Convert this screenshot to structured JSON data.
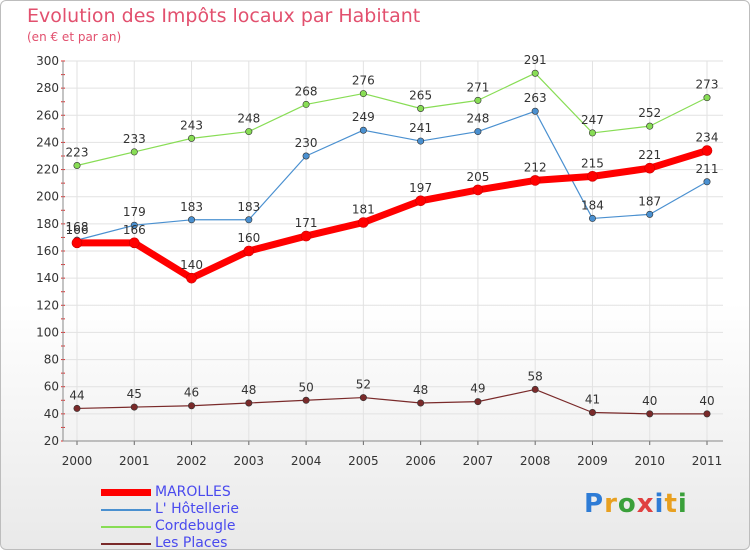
{
  "title": "Evolution des Impôts locaux par Habitant",
  "subtitle": "(en € et par an)",
  "logo": {
    "text": "Proxiti",
    "letters": [
      "P",
      "r",
      "o",
      "x",
      "i",
      "t",
      "i"
    ],
    "colors": [
      "#2e7cd6",
      "#e8a020",
      "#3aa03a",
      "#e04040",
      "#2e7cd6",
      "#e8a020",
      "#3aa03a"
    ]
  },
  "chart_data": {
    "type": "line",
    "title": "Evolution des Impôts locaux par Habitant",
    "subtitle": "(en € et par an)",
    "xlabel": "",
    "ylabel": "",
    "x": [
      "2000",
      "2001",
      "2002",
      "2003",
      "2004",
      "2005",
      "2006",
      "2007",
      "2008",
      "2009",
      "2010",
      "2011"
    ],
    "ylim": [
      20,
      300
    ],
    "yticks": [
      20,
      40,
      60,
      80,
      100,
      120,
      140,
      160,
      180,
      200,
      220,
      240,
      260,
      280,
      300
    ],
    "grid": true,
    "legend_position": "bottom-left",
    "series": [
      {
        "name": "MAROLLES",
        "color": "#ff0000",
        "width": 7,
        "marker": 5,
        "values": [
          166,
          166,
          140,
          160,
          171,
          181,
          197,
          205,
          212,
          215,
          221,
          234
        ],
        "labels": [
          "166",
          "166",
          "140",
          "160",
          "171",
          "181",
          "197",
          "205",
          "212",
          "215",
          "221",
          "234"
        ]
      },
      {
        "name": "L' Hôtellerie",
        "color": "#4a90d0",
        "width": 1.2,
        "marker": 3.2,
        "values": [
          168,
          179,
          183,
          183,
          230,
          249,
          241,
          248,
          263,
          184,
          187,
          211
        ],
        "labels": [
          "168",
          "179",
          "183",
          "183",
          "230",
          "249",
          "241",
          "248",
          "263",
          "184",
          "187",
          "211"
        ]
      },
      {
        "name": "Cordebugle",
        "color": "#88dd55",
        "width": 1.2,
        "marker": 3.2,
        "values": [
          223,
          233,
          243,
          248,
          268,
          276,
          265,
          271,
          291,
          247,
          252,
          273
        ],
        "labels": [
          "223",
          "233",
          "243",
          "248",
          "268",
          "276",
          "265",
          "271",
          "291",
          "247",
          "252",
          "273"
        ]
      },
      {
        "name": "Les Places",
        "color": "#7a2a2a",
        "width": 1.2,
        "marker": 3.2,
        "values": [
          44,
          45,
          46,
          48,
          50,
          52,
          48,
          49,
          58,
          41,
          40,
          40
        ],
        "labels": [
          "44",
          "45",
          "46",
          "48",
          "50",
          "52",
          "48",
          "49",
          "58",
          "41",
          "40",
          "40"
        ]
      }
    ]
  }
}
